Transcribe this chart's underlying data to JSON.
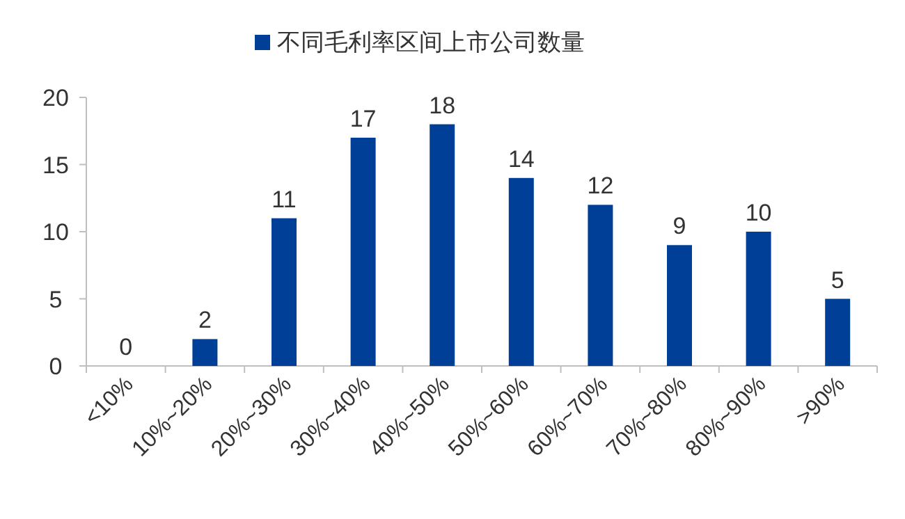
{
  "chart_data": {
    "type": "bar",
    "categories": [
      "<10%",
      "10%~20%",
      "20%~30%",
      "30%~40%",
      "40%~50%",
      "50%~60%",
      "60%~70%",
      "70%~80%",
      "80%~90%",
      ">90%"
    ],
    "series": [
      {
        "name": "不同毛利率区间上市公司数量",
        "color": "#003f98",
        "values": [
          0,
          2,
          11,
          17,
          18,
          14,
          12,
          9,
          10,
          5
        ]
      }
    ],
    "ylim": [
      0,
      20
    ],
    "yticks": [
      0,
      5,
      10,
      15,
      20
    ],
    "data_labels": true,
    "legend": "top",
    "grid": false
  }
}
